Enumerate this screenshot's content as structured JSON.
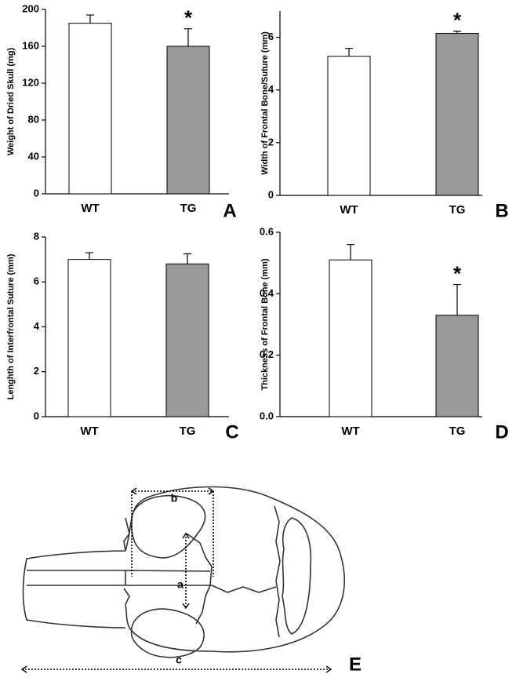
{
  "chart_data": [
    {
      "type": "bar",
      "panel": "A",
      "y_label": "Weight of Dried Skull (mg)",
      "categories": [
        "WT",
        "TG"
      ],
      "values": [
        185,
        160
      ],
      "errors": [
        9,
        19
      ],
      "colors": [
        "#ffffff",
        "#999999"
      ],
      "value_annotations": [
        null,
        "*"
      ],
      "ylim": [
        0,
        200
      ],
      "yticks": [
        0,
        40,
        80,
        120,
        160,
        200
      ]
    },
    {
      "type": "bar",
      "panel": "B",
      "y_label": "Width of Frontal Bone/Suture (mm)",
      "categories": [
        "WT",
        "TG"
      ],
      "values": [
        5.28,
        6.15
      ],
      "errors": [
        0.3,
        0.08
      ],
      "colors": [
        "#ffffff",
        "#999999"
      ],
      "value_annotations": [
        null,
        "*"
      ],
      "ylim": [
        0,
        7
      ],
      "yticks": [
        0,
        2,
        4,
        6
      ]
    },
    {
      "type": "bar",
      "panel": "C",
      "y_label": "Lenghth of Interfrontal Suture (mm)",
      "categories": [
        "WT",
        "TG"
      ],
      "values": [
        7.0,
        6.8
      ],
      "errors": [
        0.3,
        0.45
      ],
      "colors": [
        "#ffffff",
        "#999999"
      ],
      "ylim": [
        0,
        8
      ],
      "yticks": [
        0,
        2,
        4,
        6,
        8
      ]
    },
    {
      "type": "bar",
      "panel": "D",
      "y_label": "Thickness of Frontal Bone (mm)",
      "categories": [
        "WT",
        "TG"
      ],
      "values": [
        0.51,
        0.33
      ],
      "errors": [
        0.05,
        0.1
      ],
      "colors": [
        "#ffffff",
        "#999999"
      ],
      "value_annotations": [
        null,
        "*"
      ],
      "ylim": [
        0,
        0.6
      ],
      "yticks": [
        {
          "value": 0,
          "label": "0.0"
        },
        0.2,
        0.4,
        0.6
      ]
    }
  ],
  "diagram": {
    "panel": "E",
    "labels": [
      "a",
      "b",
      "c"
    ]
  }
}
